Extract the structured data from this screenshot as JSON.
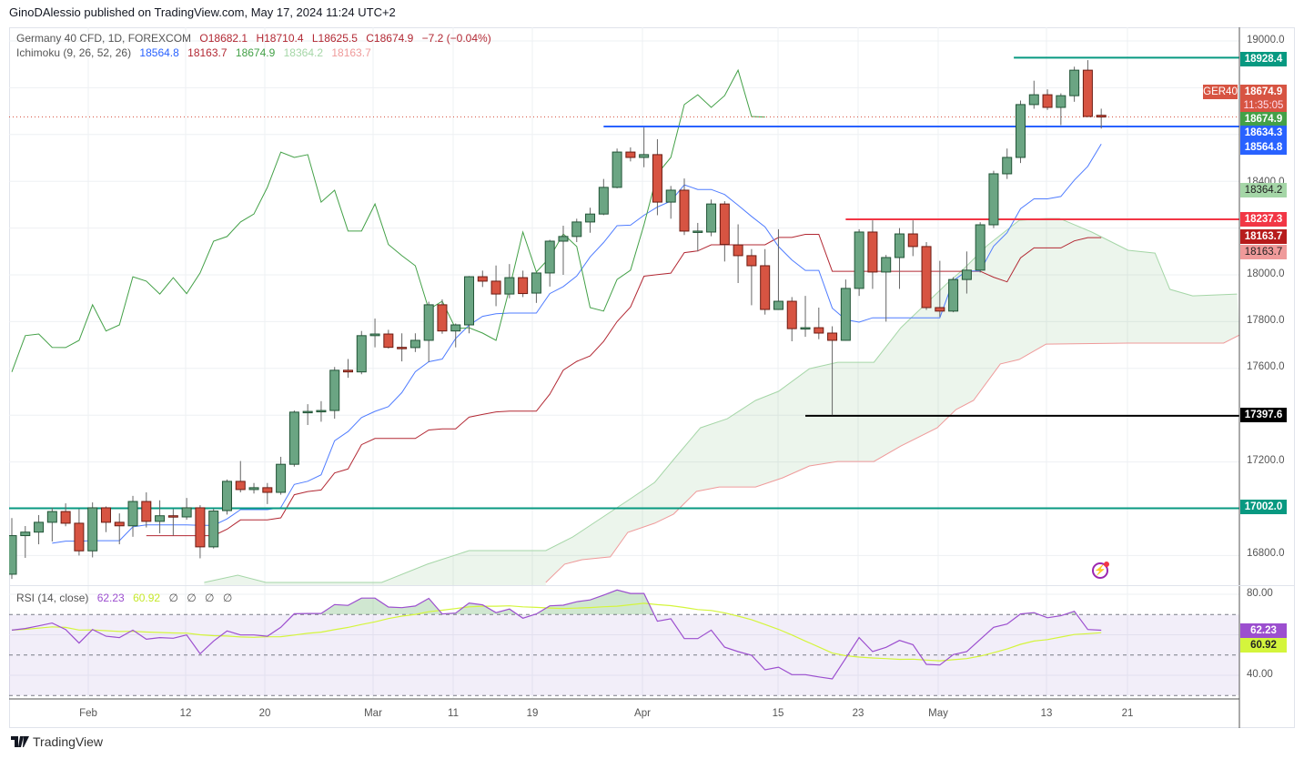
{
  "header": {
    "published": "GinoDAlessio published on TradingView.com, May 17, 2024 11:24 UTC+2",
    "symbol": "Germany 40 CFD, 1D, FOREXCOM",
    "open": "O18682.1",
    "high": "H18710.4",
    "low": "L18625.5",
    "close": "C18674.9",
    "change": "−7.2 (−0.04%)",
    "ichimoku_label": "Ichimoku (9, 26, 52, 26)",
    "ichimoku_values": [
      "18564.8",
      "18163.7",
      "18674.9",
      "18364.2",
      "18163.7"
    ],
    "rsi_label": "RSI (14, close)",
    "rsi_values": [
      "62.23",
      "60.92",
      "∅",
      "∅",
      "∅",
      "∅"
    ]
  },
  "price_axis": {
    "ticks": [
      "19000.0",
      "18400.0",
      "18000.0",
      "17800.0",
      "17600.0",
      "17200.0",
      "16800.0"
    ],
    "tags": {
      "symbol_tag": "GER40",
      "last_price": "18674.9",
      "countdown": "11:35:05",
      "chikou": "18674.9",
      "line_18634": "18634.3",
      "tenkan": "18564.8",
      "senkou_a": "18364.2",
      "line_18237": "18237.3",
      "kijun": "18163.7",
      "senkou_b": "18163.7",
      "line_18928": "18928.4",
      "line_17397": "17397.6",
      "line_17002": "17002.0"
    }
  },
  "rsi_axis": {
    "ticks": [
      "80.00",
      "40.00"
    ],
    "rsi_tag": "62.23",
    "ma_tag": "60.92"
  },
  "time_axis": [
    "Feb",
    "12",
    "20",
    "Mar",
    "11",
    "19",
    "Apr",
    "15",
    "23",
    "May",
    "13",
    "21"
  ],
  "brand": "TradingView",
  "colors": {
    "up": "#6ba583",
    "down": "#d75442",
    "tenkan": "#4f7cff",
    "kijun": "#b22833",
    "chikou": "#43a047",
    "senkou_a": "#a5d6a7",
    "senkou_b": "#ef9a9a",
    "rsi": "#9c4fcf",
    "rsi_ma": "#d4f53c"
  },
  "chart_data": {
    "type": "candlestick",
    "title": "Germany 40 CFD, 1D, FOREXCOM",
    "ylim": [
      16700,
      19100
    ],
    "ohlc": [
      [
        16720,
        16960,
        16700,
        16885
      ],
      [
        16885,
        16926,
        16790,
        16900
      ],
      [
        16900,
        16973,
        16848,
        16942
      ],
      [
        16942,
        17005,
        16860,
        16988
      ],
      [
        16988,
        17023,
        16925,
        16938
      ],
      [
        16938,
        16998,
        16800,
        16820
      ],
      [
        16820,
        17027,
        16792,
        17004
      ],
      [
        17004,
        17010,
        16900,
        16942
      ],
      [
        16942,
        16980,
        16848,
        16927
      ],
      [
        16927,
        17055,
        16880,
        17031
      ],
      [
        17031,
        17070,
        16920,
        16946
      ],
      [
        16946,
        17036,
        16895,
        16970
      ],
      [
        16970,
        16998,
        16885,
        16968
      ],
      [
        16965,
        17046,
        16953,
        17004
      ],
      [
        17004,
        17015,
        16788,
        16837
      ],
      [
        16837,
        17000,
        16830,
        16990
      ],
      [
        16992,
        17125,
        16975,
        17117
      ],
      [
        17117,
        17204,
        17070,
        17082
      ],
      [
        17082,
        17110,
        17065,
        17090
      ],
      [
        17090,
        17110,
        17020,
        17070
      ],
      [
        17070,
        17222,
        17060,
        17190
      ],
      [
        17190,
        17420,
        17180,
        17413
      ],
      [
        17413,
        17447,
        17358,
        17416
      ],
      [
        17416,
        17460,
        17372,
        17420
      ],
      [
        17420,
        17606,
        17385,
        17592
      ],
      [
        17592,
        17640,
        17560,
        17585
      ],
      [
        17585,
        17760,
        17575,
        17740
      ],
      [
        17740,
        17813,
        17690,
        17747
      ],
      [
        17747,
        17765,
        17685,
        17690
      ],
      [
        17690,
        17750,
        17630,
        17689
      ],
      [
        17689,
        17750,
        17670,
        17720
      ],
      [
        17720,
        17885,
        17627,
        17872
      ],
      [
        17872,
        17895,
        17748,
        17760
      ],
      [
        17760,
        17792,
        17690,
        17786
      ],
      [
        17786,
        17995,
        17750,
        17992
      ],
      [
        17992,
        18018,
        17948,
        17973
      ],
      [
        17973,
        18040,
        17866,
        17918
      ],
      [
        17918,
        18046,
        17900,
        17988
      ],
      [
        17988,
        18018,
        17905,
        17920
      ],
      [
        17922,
        18008,
        17880,
        18008
      ],
      [
        18008,
        18150,
        17950,
        18144
      ],
      [
        18144,
        18210,
        18000,
        18164
      ],
      [
        18164,
        18240,
        18140,
        18226
      ],
      [
        18226,
        18287,
        18180,
        18260
      ],
      [
        18260,
        18410,
        18255,
        18374
      ],
      [
        18374,
        18540,
        18370,
        18525
      ],
      [
        18525,
        18545,
        18485,
        18502
      ],
      [
        18502,
        18630,
        18460,
        18514
      ],
      [
        18514,
        18580,
        18255,
        18311
      ],
      [
        18311,
        18380,
        18240,
        18362
      ],
      [
        18362,
        18412,
        18170,
        18187
      ],
      [
        18187,
        18222,
        18100,
        18187
      ],
      [
        18183,
        18322,
        18165,
        18303
      ],
      [
        18303,
        18315,
        18057,
        18130
      ],
      [
        18128,
        18216,
        17965,
        18082
      ],
      [
        18082,
        18110,
        17870,
        18039
      ],
      [
        18039,
        18110,
        17830,
        17852
      ],
      [
        17852,
        18195,
        17850,
        17887
      ],
      [
        17887,
        17905,
        17716,
        17770
      ],
      [
        17774,
        17910,
        17735,
        17774
      ],
      [
        17774,
        17860,
        17725,
        17751
      ],
      [
        17751,
        17780,
        17400,
        17720
      ],
      [
        17720,
        17980,
        17718,
        17942
      ],
      [
        17942,
        18195,
        17910,
        18183
      ],
      [
        18183,
        18233,
        17940,
        18012
      ],
      [
        18012,
        18085,
        17800,
        18074
      ],
      [
        18074,
        18200,
        17940,
        18175
      ],
      [
        18175,
        18233,
        18080,
        18121
      ],
      [
        18121,
        18140,
        17850,
        17860
      ],
      [
        17860,
        18060,
        17820,
        17845
      ],
      [
        17845,
        17990,
        17840,
        17980
      ],
      [
        17980,
        18100,
        17920,
        18020
      ],
      [
        18020,
        18225,
        18010,
        18214
      ],
      [
        18214,
        18445,
        18200,
        18432
      ],
      [
        18432,
        18540,
        18410,
        18502
      ],
      [
        18502,
        18745,
        18478,
        18728
      ],
      [
        18728,
        18830,
        18710,
        18770
      ],
      [
        18770,
        18793,
        18705,
        18716
      ],
      [
        18716,
        18776,
        18640,
        18766
      ],
      [
        18766,
        18890,
        18740,
        18875
      ],
      [
        18875,
        18918,
        18677,
        18677
      ],
      [
        18682.1,
        18710.4,
        18625.5,
        18674.9
      ]
    ],
    "ichimoku": {
      "tenkan": 9,
      "kijun": 26,
      "senkou_b": 52,
      "displacement": 26
    },
    "senkou_a": [
      [
        14.3,
        16685
      ],
      [
        16.8,
        16716
      ],
      [
        18.9,
        16685
      ],
      [
        27.5,
        16685
      ],
      [
        30.9,
        16763
      ],
      [
        34,
        16821
      ],
      [
        39.7,
        16821
      ],
      [
        41.7,
        16879
      ],
      [
        45.8,
        17035
      ],
      [
        47.8,
        17113
      ],
      [
        49.2,
        17210
      ],
      [
        51.2,
        17346
      ],
      [
        53.2,
        17385
      ],
      [
        55.3,
        17463
      ],
      [
        57,
        17502
      ],
      [
        59.3,
        17599
      ],
      [
        61.4,
        17626
      ],
      [
        64.1,
        17626
      ],
      [
        66.1,
        17774
      ],
      [
        69.5,
        17961
      ],
      [
        70.8,
        18027
      ],
      [
        72.5,
        18124
      ],
      [
        74.9,
        18233
      ],
      [
        76.9,
        18241
      ],
      [
        77.9,
        18241
      ],
      [
        80.3,
        18183
      ],
      [
        83,
        18105
      ],
      [
        85,
        18093
      ],
      [
        86.1,
        17938
      ],
      [
        87.8,
        17910
      ],
      [
        91.1,
        17918
      ]
    ],
    "senkou_b": [
      [
        39.7,
        16685
      ],
      [
        41.1,
        16763
      ],
      [
        42.4,
        16782
      ],
      [
        44.5,
        16794
      ],
      [
        45.8,
        16899
      ],
      [
        47.8,
        16938
      ],
      [
        49.2,
        16977
      ],
      [
        50.9,
        17074
      ],
      [
        52.6,
        17093
      ],
      [
        55.3,
        17093
      ],
      [
        57.3,
        17132
      ],
      [
        59.3,
        17183
      ],
      [
        61.4,
        17202
      ],
      [
        64.1,
        17202
      ],
      [
        66.1,
        17268
      ],
      [
        68.8,
        17346
      ],
      [
        70.2,
        17424
      ],
      [
        71.5,
        17463
      ],
      [
        73.5,
        17619
      ],
      [
        74.9,
        17638
      ],
      [
        76.9,
        17704
      ],
      [
        83,
        17708
      ],
      [
        90.1,
        17708
      ],
      [
        91.3,
        17743
      ]
    ],
    "horizontal_lines": [
      {
        "price": 18928.4,
        "from_index": 74.5,
        "color": "#089981"
      },
      {
        "price": 18634.3,
        "from_index": 44,
        "color": "#2962ff"
      },
      {
        "price": 18237.3,
        "from_index": 62,
        "color": "#f23645"
      },
      {
        "price": 17397.6,
        "from_index": 59,
        "color": "#000000"
      },
      {
        "price": 17002.0,
        "from_index": -1,
        "color": "#089981"
      }
    ],
    "last_price": 18674.9,
    "rsi": {
      "length": 14,
      "ma_length": 14,
      "levels": [
        70,
        50,
        30
      ],
      "ylim": [
        26,
        84
      ],
      "values": [
        62.3,
        63.1,
        64.4,
        65.8,
        62.6,
        55.9,
        62.6,
        59.3,
        58.6,
        62.3,
        57.8,
        58.6,
        58.3,
        59.9,
        50.6,
        56.9,
        61.9,
        59.9,
        59.9,
        59.3,
        63.7,
        70.4,
        70.5,
        70.5,
        74.9,
        74.5,
        78.1,
        78.1,
        73.7,
        73.4,
        74.2,
        78.0,
        70.3,
        70.7,
        75.7,
        74.8,
        70.9,
        72.7,
        68.2,
        70.3,
        74.3,
        74.6,
        76.3,
        77.2,
        79.6,
        82.1,
        80.4,
        80.4,
        66.7,
        67.9,
        58.1,
        58.1,
        62.3,
        53.9,
        51.7,
        49.9,
        42.7,
        44.0,
        40.3,
        40.3,
        39.2,
        38.2,
        48.4,
        58.6,
        51.7,
        53.8,
        57.2,
        55.1,
        45.4,
        45.1,
        50.2,
        51.7,
        57.7,
        63.7,
        65.3,
        70.3,
        70.9,
        68.4,
        69.4,
        71.6,
        62.6,
        62.23
      ]
    }
  }
}
